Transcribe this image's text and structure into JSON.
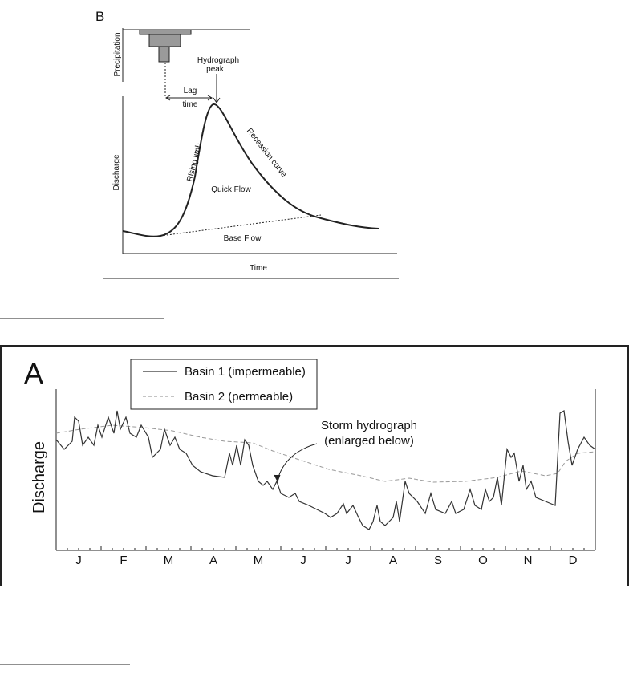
{
  "panel_b": {
    "label": "B",
    "precipitation_axis": "Precipitation",
    "peak_label": [
      "Hydrograph",
      "peak"
    ],
    "lag_label": [
      "Lag",
      "time"
    ],
    "y_axis": "Discharge",
    "x_axis": "Time",
    "rising_limb": "Rising limb",
    "recession_curve": "Recession curve",
    "quick_flow": "Quick Flow",
    "base_flow": "Base Flow"
  },
  "panel_a": {
    "label": "A",
    "legend": [
      "Basin 1 (impermeable)",
      "Basin 2 (permeable)"
    ],
    "y_axis": "Discharge",
    "annotation": [
      "Storm hydrograph",
      "(enlarged below)"
    ],
    "months": [
      "J",
      "F",
      "M",
      "A",
      "M",
      "J",
      "J",
      "A",
      "S",
      "O",
      "N",
      "D"
    ]
  }
}
